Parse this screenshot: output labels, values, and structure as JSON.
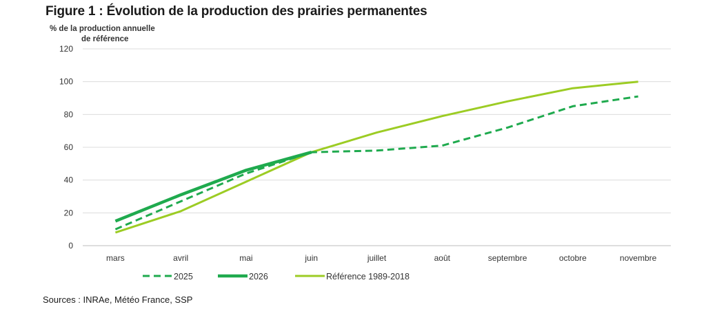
{
  "figure": {
    "title": "Figure 1 : Évolution de la production des prairies permanentes",
    "sources": "Sources : INRAe, Météo France, SSP"
  },
  "chart_data": {
    "type": "line",
    "title": "Figure 1 : Évolution de la production des prairies permanentes",
    "ylabel_lines": [
      "% de  la production  annuelle",
      "de référence"
    ],
    "xlabel": "",
    "categories": [
      "mars",
      "avril",
      "mai",
      "juin",
      "juillet",
      "août",
      "septembre",
      "octobre",
      "novembre"
    ],
    "ylim": [
      0,
      120
    ],
    "yticks": [
      0,
      20,
      40,
      60,
      80,
      100,
      120
    ],
    "grid": "horizontal",
    "legend_position": "bottom",
    "series": [
      {
        "name": "2025",
        "style": "dashed",
        "color": "#1faa4e",
        "values": [
          10,
          27,
          44,
          57,
          58,
          61,
          72,
          85,
          91
        ]
      },
      {
        "name": "2026",
        "style": "solid-thick",
        "color": "#1faa4e",
        "values": [
          15,
          31,
          46,
          57,
          null,
          null,
          null,
          null,
          null
        ]
      },
      {
        "name": "Référence 1989-2018",
        "style": "solid",
        "color": "#9ccc24",
        "values": [
          8,
          21,
          39,
          57,
          69,
          79,
          88,
          96,
          100
        ]
      }
    ]
  }
}
